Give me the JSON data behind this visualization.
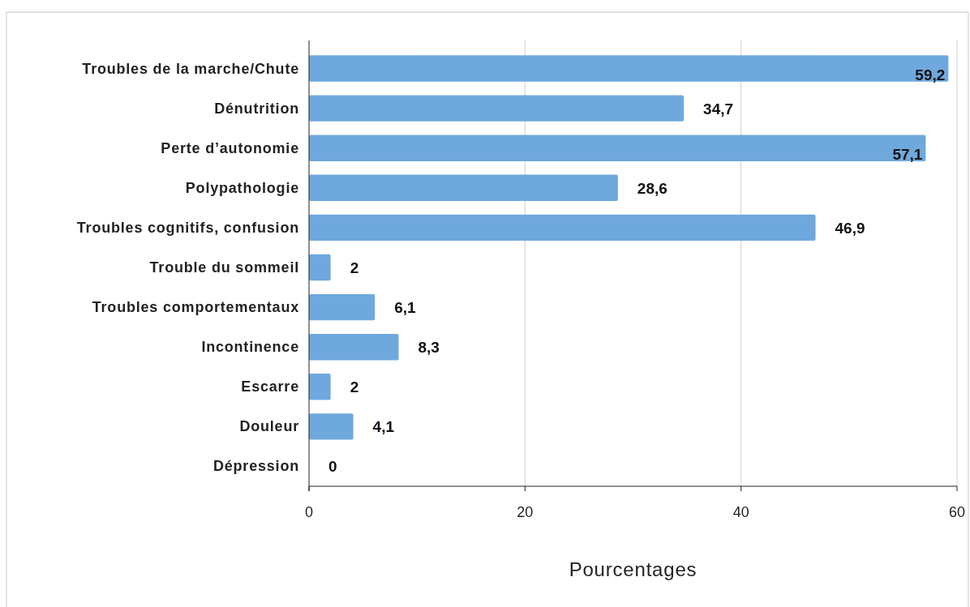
{
  "chart_data": {
    "type": "bar",
    "orientation": "horizontal",
    "xlabel": "Pourcentages",
    "categories": [
      "Troubles de la marche/Chute",
      "Dénutrition",
      "Perte d’autonomie",
      "Polypathologie",
      "Troubles cognitifs, confusion",
      "Trouble du sommeil",
      "Troubles comportementaux",
      "Incontinence",
      "Escarre",
      "Douleur",
      "Dépression"
    ],
    "values": [
      59.2,
      34.7,
      57.1,
      28.6,
      46.9,
      2,
      6.1,
      8.3,
      2,
      4.1,
      0
    ],
    "value_labels": [
      "59,2",
      "34,7",
      "57,1",
      "28,6",
      "46,9",
      "2",
      "6,1",
      "8,3",
      "2",
      "4,1",
      "0"
    ],
    "color": "#6fa8dc",
    "xlim": [
      0,
      60
    ],
    "xticks": [
      0,
      20,
      40,
      60
    ],
    "grid": "x"
  }
}
